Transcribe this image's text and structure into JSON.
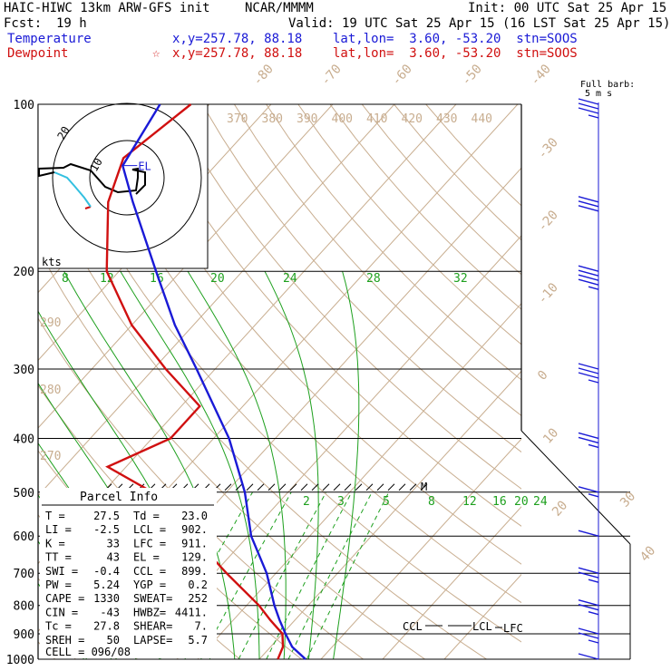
{
  "header": {
    "model": "HAIC-HIWC 13km ARW-GFS init",
    "org": "NCAR/MMMM",
    "init": "Init: 00 UTC Sat 25 Apr 15",
    "fcst_label": "Fcst:",
    "fcst_value": "19 h",
    "valid": "Valid: 19 UTC Sat 25 Apr 15 (16 LST Sat 25 Apr 15)",
    "temperature_label": "Temperature",
    "dewpoint_label": "Dewpoint",
    "temp_info": "x,y=257.78, 88.18    lat,lon=  3.60, -53.20  stn=SOOS",
    "dew_star": "☆",
    "dew_info": "x,y=257.78, 88.18    lat,lon=  3.60, -53.20  stn=SOOS"
  },
  "barb_key": {
    "line1": "Full barb:",
    "line2": "5 m s"
  },
  "parcel_info": {
    "title": "Parcel Info",
    "rows": [
      [
        "T   =",
        "27.5",
        "Td =",
        "23.0"
      ],
      [
        "LI  =",
        "-2.5",
        "LCL =",
        "902."
      ],
      [
        "K   =",
        "33",
        "LFC =",
        "911."
      ],
      [
        "TT  =",
        "43",
        "EL  =",
        "129."
      ],
      [
        "SWI =",
        "-0.4",
        "CCL =",
        "899."
      ],
      [
        "PW  =",
        "5.24",
        "YGP =",
        "0.2"
      ],
      [
        "CAPE =",
        "1330",
        "SWEAT=",
        "252"
      ],
      [
        "CIN =",
        "-43",
        "HWBZ=",
        "4411."
      ],
      [
        "Tc  =",
        "27.8",
        "SHEAR=",
        "7."
      ],
      [
        "SREH =",
        "50",
        "LAPSE=",
        "5.7"
      ]
    ],
    "cell": "CELL = 096/08"
  },
  "chart_data": {
    "type": "skew-t",
    "ylabel": "",
    "pressure_ticks": [
      "100",
      "200",
      "300",
      "400",
      "500",
      "600",
      "700",
      "800",
      "900",
      "1000"
    ],
    "isotherm_labels": [
      "-80",
      "-70",
      "-60",
      "-50",
      "-40",
      "-30",
      "-20",
      "-10",
      "0",
      "10",
      "20",
      "30",
      "40"
    ],
    "theta_labels_upper": [
      "370",
      "380",
      "390",
      "400",
      "410",
      "420",
      "430",
      "440"
    ],
    "theta_labels_left": [
      "290",
      "280",
      "270"
    ],
    "mixing_ratio_labels_upper": [
      "8",
      "12",
      "16",
      "20",
      "24",
      "28",
      "32"
    ],
    "mixing_ratio_labels_lower": [
      "2",
      "3",
      "5",
      "8",
      "12",
      "16",
      "20",
      "24"
    ],
    "hodograph": {
      "ring_labels": [
        "20",
        "10"
      ],
      "units": "kts"
    },
    "level_labels": [
      "EL",
      "CCL",
      "LCL",
      "LFC",
      "M"
    ],
    "temperature_C": [
      [
        1000,
        27.5
      ],
      [
        950,
        23.5
      ],
      [
        900,
        20.5
      ],
      [
        850,
        17.5
      ],
      [
        800,
        14.5
      ],
      [
        700,
        8.5
      ],
      [
        600,
        0.5
      ],
      [
        500,
        -7.0
      ],
      [
        400,
        -17.5
      ],
      [
        300,
        -33.0
      ],
      [
        250,
        -43.0
      ],
      [
        200,
        -54.0
      ],
      [
        150,
        -68.0
      ],
      [
        129,
        -75.0
      ],
      [
        100,
        -78.0
      ]
    ],
    "dewpoint_C": [
      [
        1000,
        23.0
      ],
      [
        950,
        22.0
      ],
      [
        900,
        20.0
      ],
      [
        850,
        16.0
      ],
      [
        800,
        12.0
      ],
      [
        700,
        2.0
      ],
      [
        600,
        -9.0
      ],
      [
        500,
        -22.0
      ],
      [
        450,
        -33.0
      ],
      [
        400,
        -27.0
      ],
      [
        350,
        -27.0
      ],
      [
        300,
        -38.0
      ],
      [
        250,
        -50.0
      ],
      [
        200,
        -62.0
      ],
      [
        150,
        -72.0
      ],
      [
        125,
        -76.0
      ],
      [
        100,
        -73.0
      ]
    ],
    "wind_barbs": [
      {
        "p": 100,
        "kts": 25
      },
      {
        "p": 150,
        "kts": 30
      },
      {
        "p": 200,
        "kts": 35
      },
      {
        "p": 300,
        "kts": 25
      },
      {
        "p": 400,
        "kts": 15
      },
      {
        "p": 500,
        "kts": 5
      },
      {
        "p": 600,
        "kts": 10
      },
      {
        "p": 700,
        "kts": 15
      },
      {
        "p": 800,
        "kts": 15
      },
      {
        "p": 900,
        "kts": 15
      },
      {
        "p": 1000,
        "kts": 10
      }
    ]
  }
}
